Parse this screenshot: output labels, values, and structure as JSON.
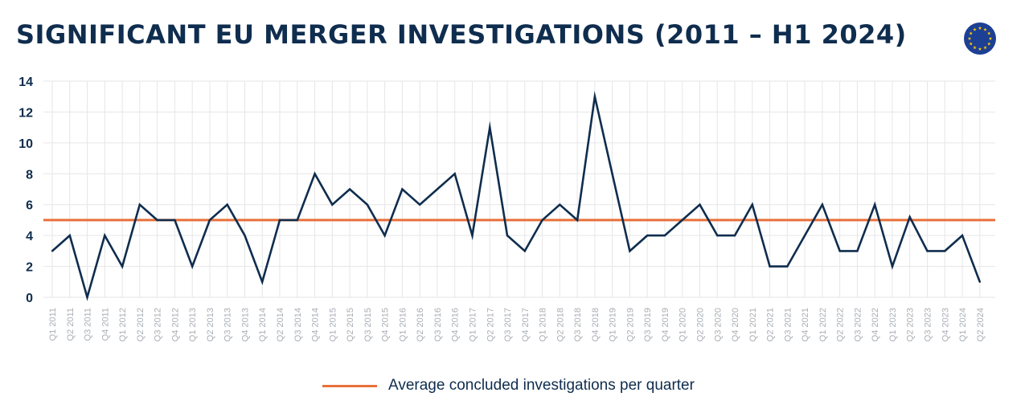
{
  "header": {
    "title": "SIGNIFICANT EU MERGER INVESTIGATIONS (2011 – H1 2024)",
    "logo_icon": "eu-flag-icon"
  },
  "legend": {
    "label": "Average concluded investigations per quarter"
  },
  "colors": {
    "series": "#0f2d4e",
    "average": "#e8703a",
    "grid": "#e6e6e6",
    "title": "#0f2d4e",
    "tick_x": "#a9aeb4",
    "eu_blue": "#1d3f94",
    "eu_star": "#ffcc00"
  },
  "chart_data": {
    "type": "line",
    "title": "SIGNIFICANT EU MERGER INVESTIGATIONS (2011 – H1 2024)",
    "xlabel": "",
    "ylabel": "",
    "ylim": [
      0,
      14
    ],
    "yticks": [
      0,
      2,
      4,
      6,
      8,
      10,
      12,
      14
    ],
    "grid": true,
    "legend_position": "bottom-center",
    "categories": [
      "Q1 2011",
      "Q2 2011",
      "Q3 2011",
      "Q4 2011",
      "Q1 2012",
      "Q2 2012",
      "Q3 2012",
      "Q4 2012",
      "Q1 2013",
      "Q2 2013",
      "Q3 2013",
      "Q4 2013",
      "Q1 2014",
      "Q2 2014",
      "Q3 2014",
      "Q4 2014",
      "Q1 2015",
      "Q2 2015",
      "Q3 2015",
      "Q4 2015",
      "Q1 2016",
      "Q2 2016",
      "Q3 2016",
      "Q4 2016",
      "Q1 2017",
      "Q2 2017",
      "Q3 2017",
      "Q4 2017",
      "Q1 2018",
      "Q2 2018",
      "Q3 2018",
      "Q4 2018",
      "Q1 2019",
      "Q2 2019",
      "Q3 2019",
      "Q4 2019",
      "Q1 2020",
      "Q2 2020",
      "Q3 2020",
      "Q4 2020",
      "Q1 2021",
      "Q2 2021",
      "Q3 2021",
      "Q4 2021",
      "Q1 2022",
      "Q2 2022",
      "Q3 2022",
      "Q4 2022",
      "Q1 2023",
      "Q2 2023",
      "Q3 2023",
      "Q4 2023",
      "Q1 2024",
      "Q2 2024"
    ],
    "series": [
      {
        "values": [
          3,
          4,
          0,
          4,
          2,
          6,
          5,
          5,
          2,
          5,
          6,
          4,
          1,
          5,
          5,
          8,
          6,
          7,
          6,
          4,
          7,
          6,
          7,
          8,
          4,
          11,
          4,
          3,
          5,
          6,
          5,
          13,
          8,
          3,
          4,
          4,
          5,
          6,
          4,
          4,
          6,
          2,
          2,
          4,
          6,
          3,
          3,
          6,
          2,
          5.2,
          3,
          3,
          4,
          1
        ]
      },
      {
        "name": "Average concluded investigations per quarter",
        "constant": 5
      }
    ]
  }
}
